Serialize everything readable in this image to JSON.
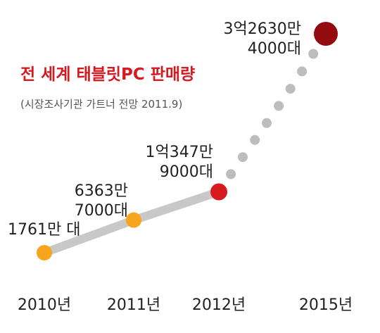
{
  "chart_data": {
    "type": "line",
    "title": "전 세계 태블릿PC 판매량",
    "subtitle": "(시장조사기관 가트너 전망 2011.9)",
    "categories": [
      "2010년",
      "2011년",
      "2012년",
      "2015년"
    ],
    "values": [
      17610000,
      63637000,
      103479000,
      326304000
    ],
    "data_labels": [
      [
        "1761만 대"
      ],
      [
        "6363만",
        "7000대"
      ],
      [
        "1억347만",
        "9000대"
      ],
      [
        "3억2630만",
        "4000대"
      ]
    ],
    "projected_from_index": 2,
    "point_colors": [
      "#F7A51E",
      "#F7A51E",
      "#D71920",
      "#930B0E"
    ],
    "colors": {
      "title": "#D71920",
      "line_actual": "#C8C8C8",
      "line_projected": "#BDBDBD",
      "text": "#231F20",
      "subtitle": "#555555"
    },
    "grid": false,
    "legend": false
  }
}
